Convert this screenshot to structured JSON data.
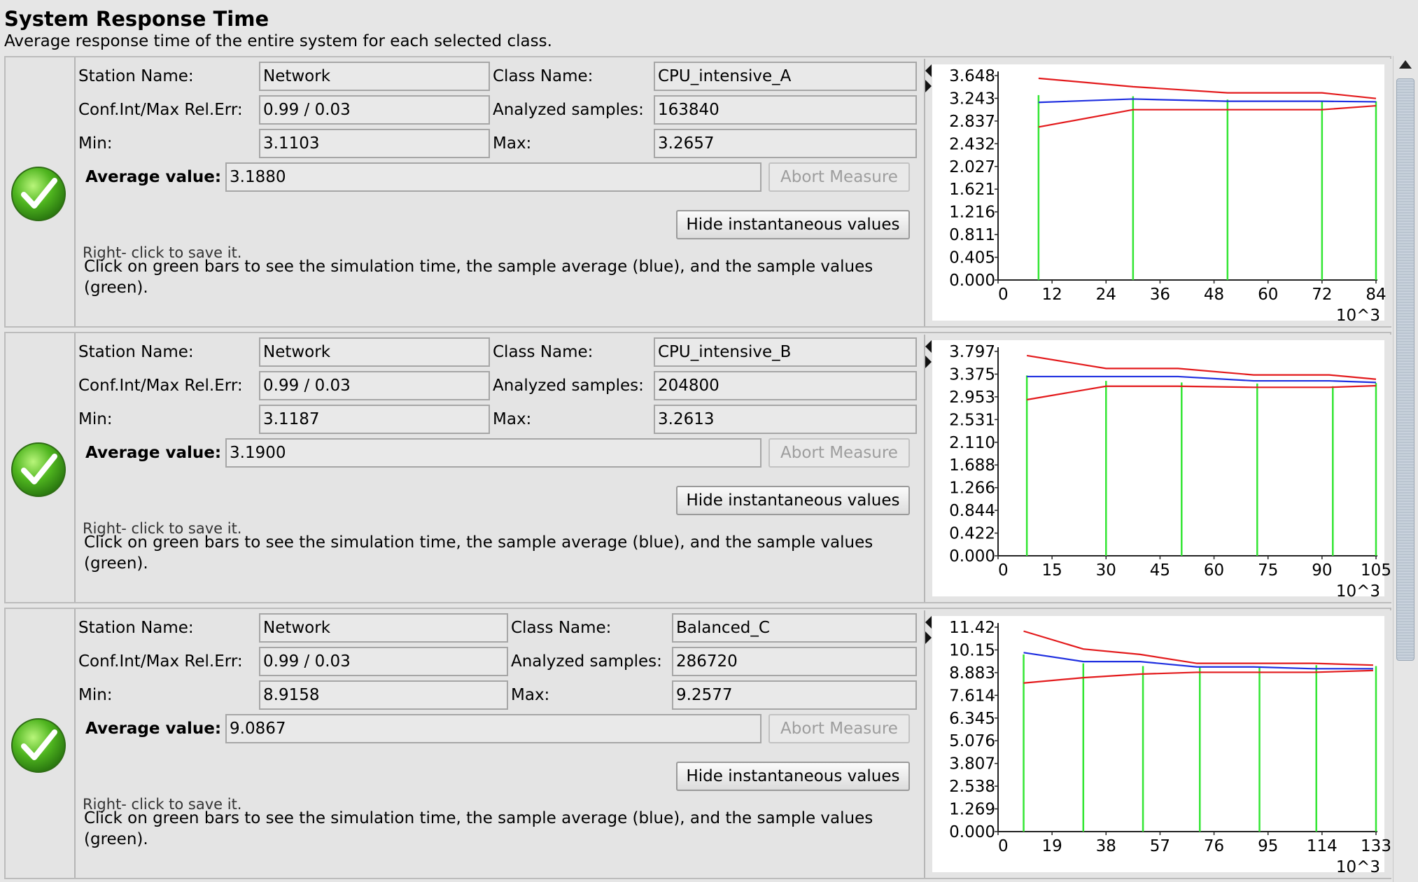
{
  "header": {
    "title": "System Response Time",
    "subtitle": "Average response time of the entire system for each selected class."
  },
  "labels": {
    "station_name": "Station Name:",
    "class_name": "Class Name:",
    "conf_int": "Conf.Int/Max Rel.Err:",
    "analyzed_samples": "Analyzed samples:",
    "min": "Min:",
    "max": "Max:",
    "average_value": "Average value:",
    "abort_button": "Abort Measure",
    "hide_button": "Hide instantaneous values",
    "cut_text": "Right- click to save it.",
    "help_text": "Click on green bars to see the simulation time, the sample average (blue), and the sample values (green)."
  },
  "measures": [
    {
      "station_name": "Network",
      "class_name": "CPU_intensive_A",
      "conf_int": "0.99 / 0.03",
      "analyzed_samples": "163840",
      "min": "3.1103",
      "max": "3.2657",
      "average_value": "3.1880",
      "chart_data": {
        "type": "line",
        "y_ticks": [
          "3.648",
          "3.243",
          "2.837",
          "2.432",
          "2.027",
          "1.621",
          "1.216",
          "0.811",
          "0.405",
          "0.000"
        ],
        "ylim": [
          0,
          3.648
        ],
        "x_ticks": [
          "0",
          "12",
          "24",
          "36",
          "48",
          "60",
          "72",
          "84"
        ],
        "xlim": [
          0,
          84
        ],
        "x_unit": "10^3",
        "series": [
          {
            "color": "#e31a1c",
            "x": [
              9,
              30,
              51,
              72,
              84
            ],
            "y": [
              3.6,
              3.45,
              3.34,
              3.34,
              3.24
            ]
          },
          {
            "color": "#1f2fe0",
            "x": [
              9,
              30,
              51,
              72,
              84
            ],
            "y": [
              3.17,
              3.23,
              3.19,
              3.19,
              3.18
            ]
          },
          {
            "color": "#e31a1c",
            "x": [
              9,
              30,
              51,
              72,
              84
            ],
            "y": [
              2.73,
              3.04,
              3.04,
              3.04,
              3.11
            ]
          }
        ],
        "bars": {
          "color": "#33e633",
          "x": [
            9,
            30,
            51,
            72,
            84
          ],
          "y": [
            3.3,
            3.28,
            3.22,
            3.2,
            3.19
          ]
        }
      }
    },
    {
      "station_name": "Network",
      "class_name": "CPU_intensive_B",
      "conf_int": "0.99 / 0.03",
      "analyzed_samples": "204800",
      "min": "3.1187",
      "max": "3.2613",
      "average_value": "3.1900",
      "chart_data": {
        "type": "line",
        "y_ticks": [
          "3.797",
          "3.375",
          "2.953",
          "2.531",
          "2.110",
          "1.688",
          "1.266",
          "0.844",
          "0.422",
          "0.000"
        ],
        "ylim": [
          0,
          3.797
        ],
        "x_ticks": [
          "0",
          "15",
          "30",
          "45",
          "60",
          "75",
          "90",
          "105"
        ],
        "xlim": [
          0,
          105
        ],
        "x_unit": "10^3",
        "series": [
          {
            "color": "#e31a1c",
            "x": [
              8,
              30,
              50,
              71,
              92,
              105
            ],
            "y": [
              3.72,
              3.48,
              3.48,
              3.36,
              3.36,
              3.28
            ]
          },
          {
            "color": "#1f2fe0",
            "x": [
              8,
              30,
              50,
              71,
              92,
              105
            ],
            "y": [
              3.33,
              3.33,
              3.33,
              3.25,
              3.25,
              3.22
            ]
          },
          {
            "color": "#e31a1c",
            "x": [
              8,
              30,
              50,
              71,
              92,
              105
            ],
            "y": [
              2.9,
              3.15,
              3.15,
              3.13,
              3.13,
              3.16
            ]
          }
        ],
        "bars": {
          "color": "#33e633",
          "x": [
            8,
            30,
            51,
            72,
            93,
            105
          ],
          "y": [
            3.35,
            3.25,
            3.22,
            3.2,
            3.15,
            3.21
          ]
        }
      }
    },
    {
      "station_name": "Network",
      "class_name": "Balanced_C",
      "conf_int": "0.99 / 0.03",
      "analyzed_samples": "286720",
      "min": "8.9158",
      "max": "9.2577",
      "average_value": "9.0867",
      "chart_data": {
        "type": "line",
        "y_ticks": [
          "11.42",
          "10.15",
          "8.883",
          "7.614",
          "6.345",
          "5.076",
          "3.807",
          "2.538",
          "1.269",
          "0.000"
        ],
        "ylim": [
          0,
          11.42
        ],
        "x_ticks": [
          "0",
          "19",
          "38",
          "57",
          "76",
          "95",
          "114",
          "133"
        ],
        "xlim": [
          0,
          133
        ],
        "x_unit": "10^3",
        "series": [
          {
            "color": "#e31a1c",
            "x": [
              9,
              30,
              50,
              70,
              90,
              111,
              132
            ],
            "y": [
              11.2,
              10.2,
              9.9,
              9.4,
              9.4,
              9.4,
              9.3
            ]
          },
          {
            "color": "#1f2fe0",
            "x": [
              9,
              30,
              50,
              70,
              90,
              111,
              132
            ],
            "y": [
              10.0,
              9.5,
              9.5,
              9.2,
              9.2,
              9.1,
              9.1
            ]
          },
          {
            "color": "#e31a1c",
            "x": [
              9,
              30,
              50,
              70,
              90,
              111,
              132
            ],
            "y": [
              8.3,
              8.6,
              8.8,
              8.9,
              8.9,
              8.9,
              9.0
            ]
          }
        ],
        "bars": {
          "color": "#33e633",
          "x": [
            9,
            30,
            51,
            71,
            92,
            112,
            133
          ],
          "y": [
            9.9,
            9.4,
            9.25,
            9.2,
            9.15,
            9.3,
            9.25
          ]
        }
      }
    }
  ]
}
